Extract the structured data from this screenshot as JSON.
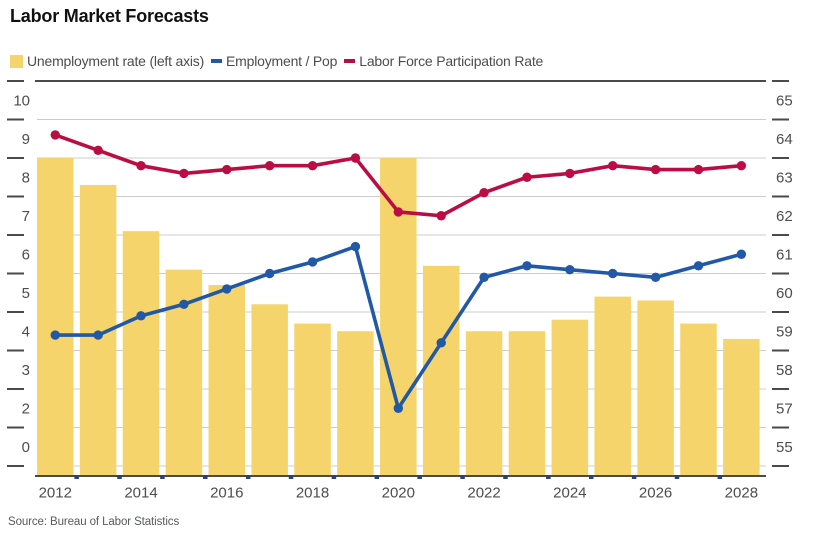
{
  "chart_data": {
    "type": "combo bar+line, dual y-axis",
    "title": "Labor Market Forecasts",
    "source": "Source: Bureau of Labor Statistics",
    "categories": [
      2012,
      2013,
      2014,
      2015,
      2016,
      2017,
      2018,
      2019,
      2020,
      2021,
      2022,
      2023,
      2024,
      2025,
      2026,
      2027,
      2028
    ],
    "x_tick_labels": [
      "2012",
      "2014",
      "2016",
      "2018",
      "2020",
      "2022",
      "2024",
      "2026",
      "2028"
    ],
    "left_axis": {
      "top_value": 10,
      "tick_labels": [
        "10",
        "9",
        "8",
        "7",
        "6",
        "5",
        "4",
        "3",
        "2",
        "0"
      ]
    },
    "right_axis": {
      "top_value": 65,
      "tick_labels": [
        "65",
        "64",
        "63",
        "62",
        "61",
        "60",
        "59",
        "58",
        "57",
        "55"
      ]
    },
    "series": [
      {
        "name": "Unemployment rate",
        "legend_label": "Unemployment rate (left axis)",
        "type": "bar",
        "axis": "left",
        "color": "#F5D46C",
        "values": [
          8.5,
          7.8,
          6.6,
          5.6,
          5.2,
          4.7,
          4.2,
          4.0,
          8.5,
          5.7,
          4.0,
          4.0,
          4.3,
          4.9,
          4.8,
          4.2,
          3.8
        ]
      },
      {
        "name": "Employment / Pop",
        "legend_label": "Employment / Pop",
        "type": "line",
        "axis": "right",
        "color": "#2159A6",
        "values": [
          58.9,
          58.9,
          59.4,
          59.7,
          60.1,
          60.5,
          60.8,
          61.2,
          57.0,
          58.7,
          60.4,
          60.7,
          60.6,
          60.5,
          60.4,
          60.7,
          61.0
        ]
      },
      {
        "name": "Labor Force Participation Rate",
        "legend_label": "Labor Force Participation Rate",
        "type": "line",
        "axis": "right",
        "color": "#BB0D44",
        "values": [
          64.1,
          63.7,
          63.3,
          63.1,
          63.2,
          63.3,
          63.3,
          63.5,
          62.1,
          62.0,
          62.6,
          63.0,
          63.1,
          63.3,
          63.2,
          63.2,
          63.3
        ]
      }
    ],
    "legend_position": "top",
    "grid": "horizontal",
    "colors": {
      "gridline": "#CCCCCC",
      "axis_line": "#4A4A4A",
      "tick_text": "#4D4D4D",
      "x_tick_nub": "#2E4172",
      "title_text": "#111111",
      "source_text": "#58595B"
    }
  }
}
